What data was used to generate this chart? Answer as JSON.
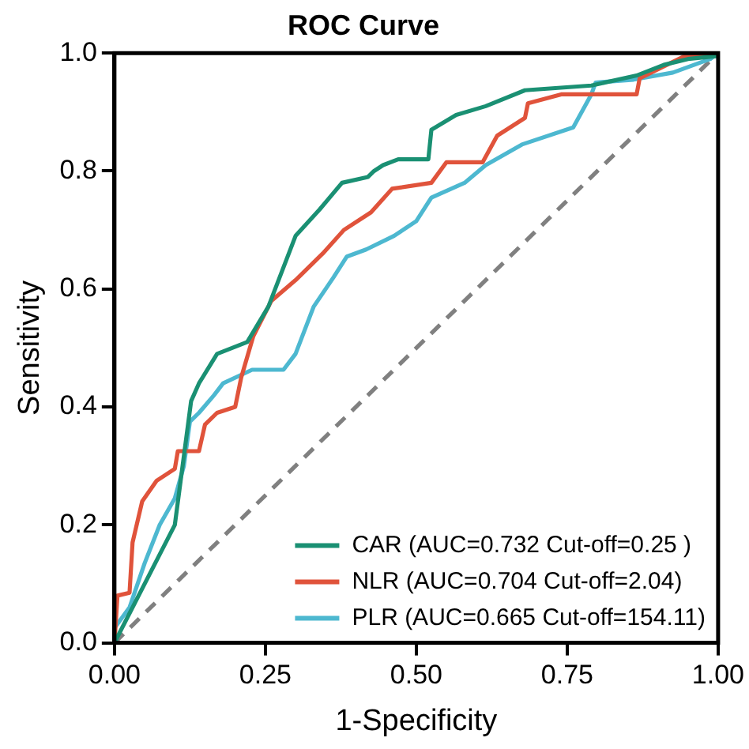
{
  "chart_data": {
    "type": "line",
    "title": "ROC Curve",
    "xlabel": "1-Specificity",
    "ylabel": "Sensitivity",
    "xlim": [
      0,
      1
    ],
    "ylim": [
      0,
      1
    ],
    "xticks": [
      {
        "value": 0,
        "label": "0.00"
      },
      {
        "value": 0.25,
        "label": "0.25"
      },
      {
        "value": 0.5,
        "label": "0.50"
      },
      {
        "value": 0.75,
        "label": "0.75"
      },
      {
        "value": 1,
        "label": "1.00"
      }
    ],
    "yticks": [
      {
        "value": 0,
        "label": "0.0"
      },
      {
        "value": 0.2,
        "label": "0.2"
      },
      {
        "value": 0.4,
        "label": "0.4"
      },
      {
        "value": 0.6,
        "label": "0.6"
      },
      {
        "value": 0.8,
        "label": "0.8"
      },
      {
        "value": 1,
        "label": "1.0"
      }
    ],
    "grid": false,
    "legend": "bottom right",
    "marker": "none",
    "series": [
      {
        "name": "CAR (AUC=0.732 Cut-off=0.25 )",
        "color": "#1a9073",
        "x": [
          0,
          0.1,
          0.127,
          0.14,
          0.17,
          0.22,
          0.255,
          0.3,
          0.34,
          0.377,
          0.42,
          0.43,
          0.445,
          0.47,
          0.52,
          0.525,
          0.566,
          0.615,
          0.68,
          0.79,
          0.865,
          0.91,
          0.95,
          1,
          1
        ],
        "values": [
          0,
          0.2,
          0.41,
          0.44,
          0.49,
          0.51,
          0.57,
          0.69,
          0.735,
          0.78,
          0.79,
          0.8,
          0.81,
          0.82,
          0.82,
          0.87,
          0.895,
          0.91,
          0.937,
          0.945,
          0.962,
          0.98,
          0.99,
          0.995,
          1
        ]
      },
      {
        "name": "NLR (AUC=0.704 Cut-off=2.04)",
        "color": "#e0533b",
        "x": [
          0,
          0.005,
          0.025,
          0.03,
          0.046,
          0.07,
          0.1,
          0.105,
          0.14,
          0.15,
          0.17,
          0.2,
          0.21,
          0.23,
          0.26,
          0.3,
          0.345,
          0.38,
          0.425,
          0.46,
          0.525,
          0.55,
          0.61,
          0.634,
          0.68,
          0.685,
          0.74,
          0.865,
          0.87,
          0.905,
          0.945,
          1
        ],
        "values": [
          0,
          0.08,
          0.085,
          0.17,
          0.24,
          0.275,
          0.295,
          0.325,
          0.325,
          0.37,
          0.39,
          0.4,
          0.45,
          0.52,
          0.58,
          0.615,
          0.66,
          0.7,
          0.73,
          0.77,
          0.78,
          0.815,
          0.815,
          0.86,
          0.89,
          0.915,
          0.93,
          0.93,
          0.957,
          0.975,
          0.995,
          1
        ]
      },
      {
        "name": "PLR (AUC=0.665 Cut-off=154.11)",
        "color": "#4db8d0",
        "x": [
          0,
          0,
          0.025,
          0.05,
          0.075,
          0.1,
          0.115,
          0.125,
          0.14,
          0.165,
          0.18,
          0.228,
          0.28,
          0.3,
          0.33,
          0.363,
          0.385,
          0.417,
          0.463,
          0.5,
          0.525,
          0.58,
          0.615,
          0.675,
          0.76,
          0.79,
          0.797,
          0.86,
          0.925,
          0.96,
          0.987,
          1
        ],
        "values": [
          0,
          0.025,
          0.06,
          0.135,
          0.2,
          0.245,
          0.3,
          0.375,
          0.39,
          0.42,
          0.44,
          0.463,
          0.463,
          0.49,
          0.57,
          0.62,
          0.655,
          0.667,
          0.69,
          0.715,
          0.755,
          0.78,
          0.81,
          0.845,
          0.874,
          0.93,
          0.95,
          0.955,
          0.967,
          0.98,
          0.99,
          1
        ]
      },
      {
        "color": "#808080",
        "line_style": "dashed",
        "x": [
          0,
          1
        ],
        "values": [
          0,
          1
        ]
      }
    ]
  }
}
